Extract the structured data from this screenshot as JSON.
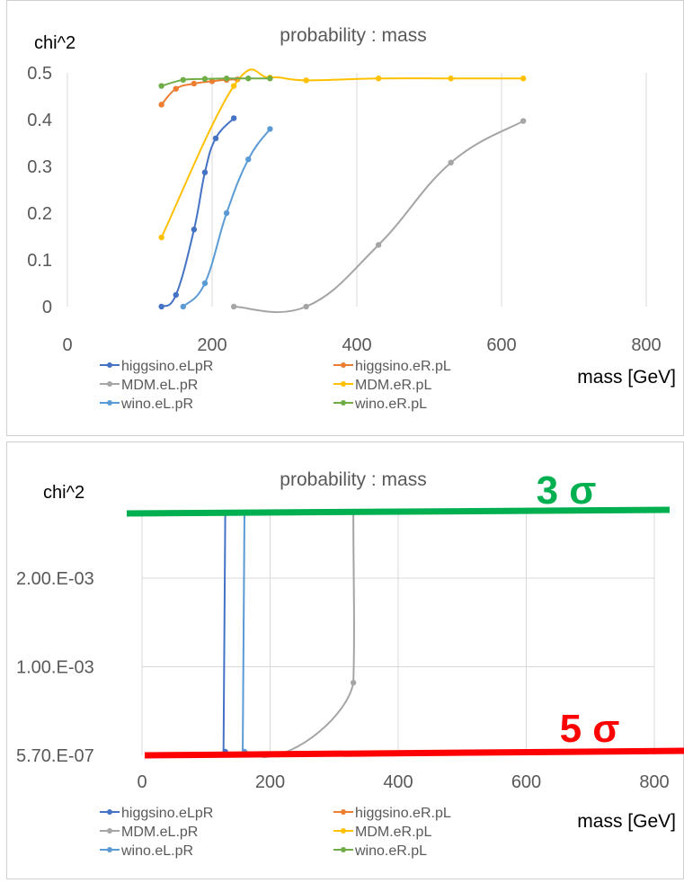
{
  "chart_data": [
    {
      "type": "scatter",
      "title": "probability : mass",
      "ylabel": "chi^2",
      "xlabel": "mass [GeV]",
      "xlim": [
        0,
        800
      ],
      "ylim": [
        0,
        0.5
      ],
      "xticks": [
        "0",
        "200",
        "400",
        "600",
        "800"
      ],
      "yticks": [
        "0",
        "0.1",
        "0.2",
        "0.3",
        "0.4",
        "0.5"
      ],
      "grid": "vertical",
      "legend_position": "bottom",
      "series": [
        {
          "name": "higgsino.eLpR",
          "color": "#4472C4",
          "x": [
            130,
            150,
            175,
            190,
            205,
            230
          ],
          "y": [
            0.0,
            0.025,
            0.165,
            0.287,
            0.36,
            0.403
          ]
        },
        {
          "name": "higgsino.eR.pL",
          "color": "#ED7D31",
          "x": [
            130,
            150,
            175,
            200,
            220,
            235
          ],
          "y": [
            0.432,
            0.466,
            0.477,
            0.482,
            0.485,
            0.486
          ]
        },
        {
          "name": "MDM.eL.pR",
          "color": "#A5A5A5",
          "x": [
            230,
            330,
            430,
            530,
            630
          ],
          "y": [
            0.0,
            0.0,
            0.132,
            0.308,
            0.397
          ]
        },
        {
          "name": "MDM.eR.pL",
          "color": "#FFC000",
          "x": [
            130,
            230,
            280,
            330,
            430,
            530,
            630
          ],
          "y": [
            0.148,
            0.472,
            0.49,
            0.484,
            0.488,
            0.488,
            0.488
          ]
        },
        {
          "name": "wino.eL.pR",
          "color": "#5B9BD5",
          "x": [
            160,
            190,
            220,
            250,
            280
          ],
          "y": [
            0.0,
            0.05,
            0.2,
            0.315,
            0.38
          ]
        },
        {
          "name": "wino.eR.pL",
          "color": "#70AD47",
          "x": [
            130,
            160,
            190,
            220,
            250,
            280
          ],
          "y": [
            0.472,
            0.485,
            0.487,
            0.488,
            0.488,
            0.488
          ]
        }
      ]
    },
    {
      "type": "line",
      "title": "probability : mass",
      "ylabel": "chi^2",
      "xlabel": "mass [GeV]",
      "xlim": [
        0,
        800
      ],
      "xticks": [
        "0",
        "200",
        "400",
        "600",
        "800"
      ],
      "yticks": [
        "5.70.E-07",
        "1.00.E-03",
        "2.00.E-03"
      ],
      "ytick_values": [
        5.7e-07,
        0.001,
        0.002
      ],
      "grid": "both",
      "legend_position": "bottom",
      "series": [
        {
          "name": "higgsino.eLpR",
          "color": "#4472C4",
          "x": [
            130,
            130
          ],
          "y": [
            0,
            0.0029
          ]
        },
        {
          "name": "higgsino.eR.pL",
          "color": "#ED7D31",
          "x": [],
          "y": []
        },
        {
          "name": "MDM.eL.pR",
          "color": "#A5A5A5",
          "x": [
            230,
            330,
            330
          ],
          "y": [
            0,
            0.00082,
            0.0029
          ]
        },
        {
          "name": "MDM.eR.pL",
          "color": "#FFC000",
          "x": [],
          "y": []
        },
        {
          "name": "wino.eL.pR",
          "color": "#5B9BD5",
          "x": [
            160,
            160
          ],
          "y": [
            0,
            0.0029
          ]
        },
        {
          "name": "wino.eR.pL",
          "color": "#70AD47",
          "x": [],
          "y": []
        }
      ],
      "annotations": [
        {
          "text": "3 σ",
          "color": "#00B050"
        },
        {
          "text": "5 σ",
          "color": "#FF0000"
        }
      ]
    }
  ]
}
